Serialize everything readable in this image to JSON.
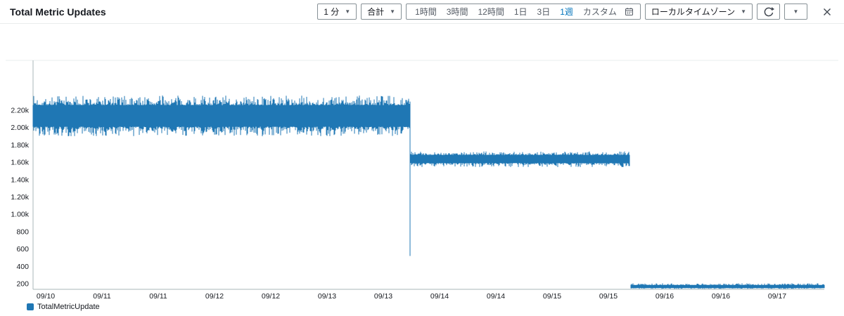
{
  "header": {
    "title": "Total Metric Updates",
    "period_dropdown": {
      "value": "1 分"
    },
    "statistic_dropdown": {
      "value": "合計"
    },
    "time_ranges": {
      "items": [
        {
          "label": "1時間"
        },
        {
          "label": "3時間"
        },
        {
          "label": "12時間"
        },
        {
          "label": "1日"
        },
        {
          "label": "3日"
        },
        {
          "label": "1週"
        },
        {
          "label": "カスタム"
        }
      ],
      "selected": "1週"
    },
    "timezone_dropdown": {
      "value": "ローカルタイムゾーン"
    }
  },
  "icons": {
    "chevron_down": "▼",
    "refresh": "circular-arrow",
    "calendar": "calendar-grid",
    "close": "x"
  },
  "colors": {
    "accent": "#0073bb",
    "series": "#1f77b4",
    "axis": "#aab7b8",
    "border": "#879196"
  },
  "chart_data": {
    "type": "line",
    "title": "Total Metric Updates",
    "series": [
      {
        "name": "TotalMetricUpdate",
        "color": "#1f77b4"
      }
    ],
    "x_axis": {
      "tick_labels": [
        "09/10",
        "09/11",
        "09/11",
        "09/12",
        "09/12",
        "09/13",
        "09/13",
        "09/14",
        "09/14",
        "09/15",
        "09/15",
        "09/16",
        "09/16",
        "09/17"
      ],
      "tick_interval": "12 hours",
      "range": "1 week, 09/10 through 09/17"
    },
    "y_axis": {
      "tick_labels": [
        "2.20k",
        "2.00k",
        "1.80k",
        "1.60k",
        "1.40k",
        "1.20k",
        "1.00k",
        "800",
        "600",
        "400",
        "200"
      ],
      "tick_values": [
        2200,
        2000,
        1800,
        1600,
        1400,
        1200,
        1000,
        800,
        600,
        400,
        200
      ]
    },
    "legend_position": "bottom-left",
    "segments": [
      {
        "type": "band",
        "x_start": 0.0,
        "x_end": 0.4764,
        "core_low": 2010,
        "core_high": 2260,
        "min": 1900,
        "max": 2370,
        "note": "dense noisy band ~2.0k-2.35k from 09/10 to midday 09/13"
      },
      {
        "type": "spike",
        "x": 0.4764,
        "from": 2300,
        "to": 520,
        "note": "sharp downward spike to ~520 at the level change near 09/13 18:00"
      },
      {
        "type": "band",
        "x_start": 0.4764,
        "x_end": 0.7538,
        "core_low": 1590,
        "core_high": 1685,
        "min": 1545,
        "max": 1725,
        "note": "noisy band ~1.6k-1.7k from midday 09/13 to late 09/15"
      },
      {
        "type": "band",
        "x_start": 0.7556,
        "x_end": 1.0,
        "core_low": 150,
        "core_high": 185,
        "min": 140,
        "max": 205,
        "note": "thin band ~150-190 from late 09/15 through end (09/17+)"
      }
    ]
  }
}
